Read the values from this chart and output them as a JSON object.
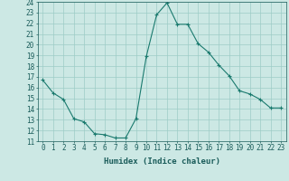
{
  "x": [
    0,
    1,
    2,
    3,
    4,
    5,
    6,
    7,
    8,
    9,
    10,
    11,
    12,
    13,
    14,
    15,
    16,
    17,
    18,
    19,
    20,
    21,
    22,
    23
  ],
  "y": [
    16.7,
    15.5,
    14.9,
    13.1,
    12.8,
    11.7,
    11.6,
    11.3,
    11.3,
    13.1,
    18.9,
    22.8,
    23.9,
    21.9,
    21.9,
    20.1,
    19.3,
    18.1,
    17.1,
    15.7,
    15.4,
    14.9,
    14.1,
    14.1
  ],
  "line_color": "#1a7a6e",
  "marker": "+",
  "bg_color": "#cce8e4",
  "grid_color": "#9eccc6",
  "xlabel": "Humidex (Indice chaleur)",
  "ylim": [
    11,
    24
  ],
  "xlim": [
    -0.5,
    23.5
  ],
  "yticks": [
    11,
    12,
    13,
    14,
    15,
    16,
    17,
    18,
    19,
    20,
    21,
    22,
    23,
    24
  ],
  "xticks": [
    0,
    1,
    2,
    3,
    4,
    5,
    6,
    7,
    8,
    9,
    10,
    11,
    12,
    13,
    14,
    15,
    16,
    17,
    18,
    19,
    20,
    21,
    22,
    23
  ],
  "tick_color": "#1a5c5a",
  "label_fontsize": 6.5,
  "tick_fontsize": 5.5
}
